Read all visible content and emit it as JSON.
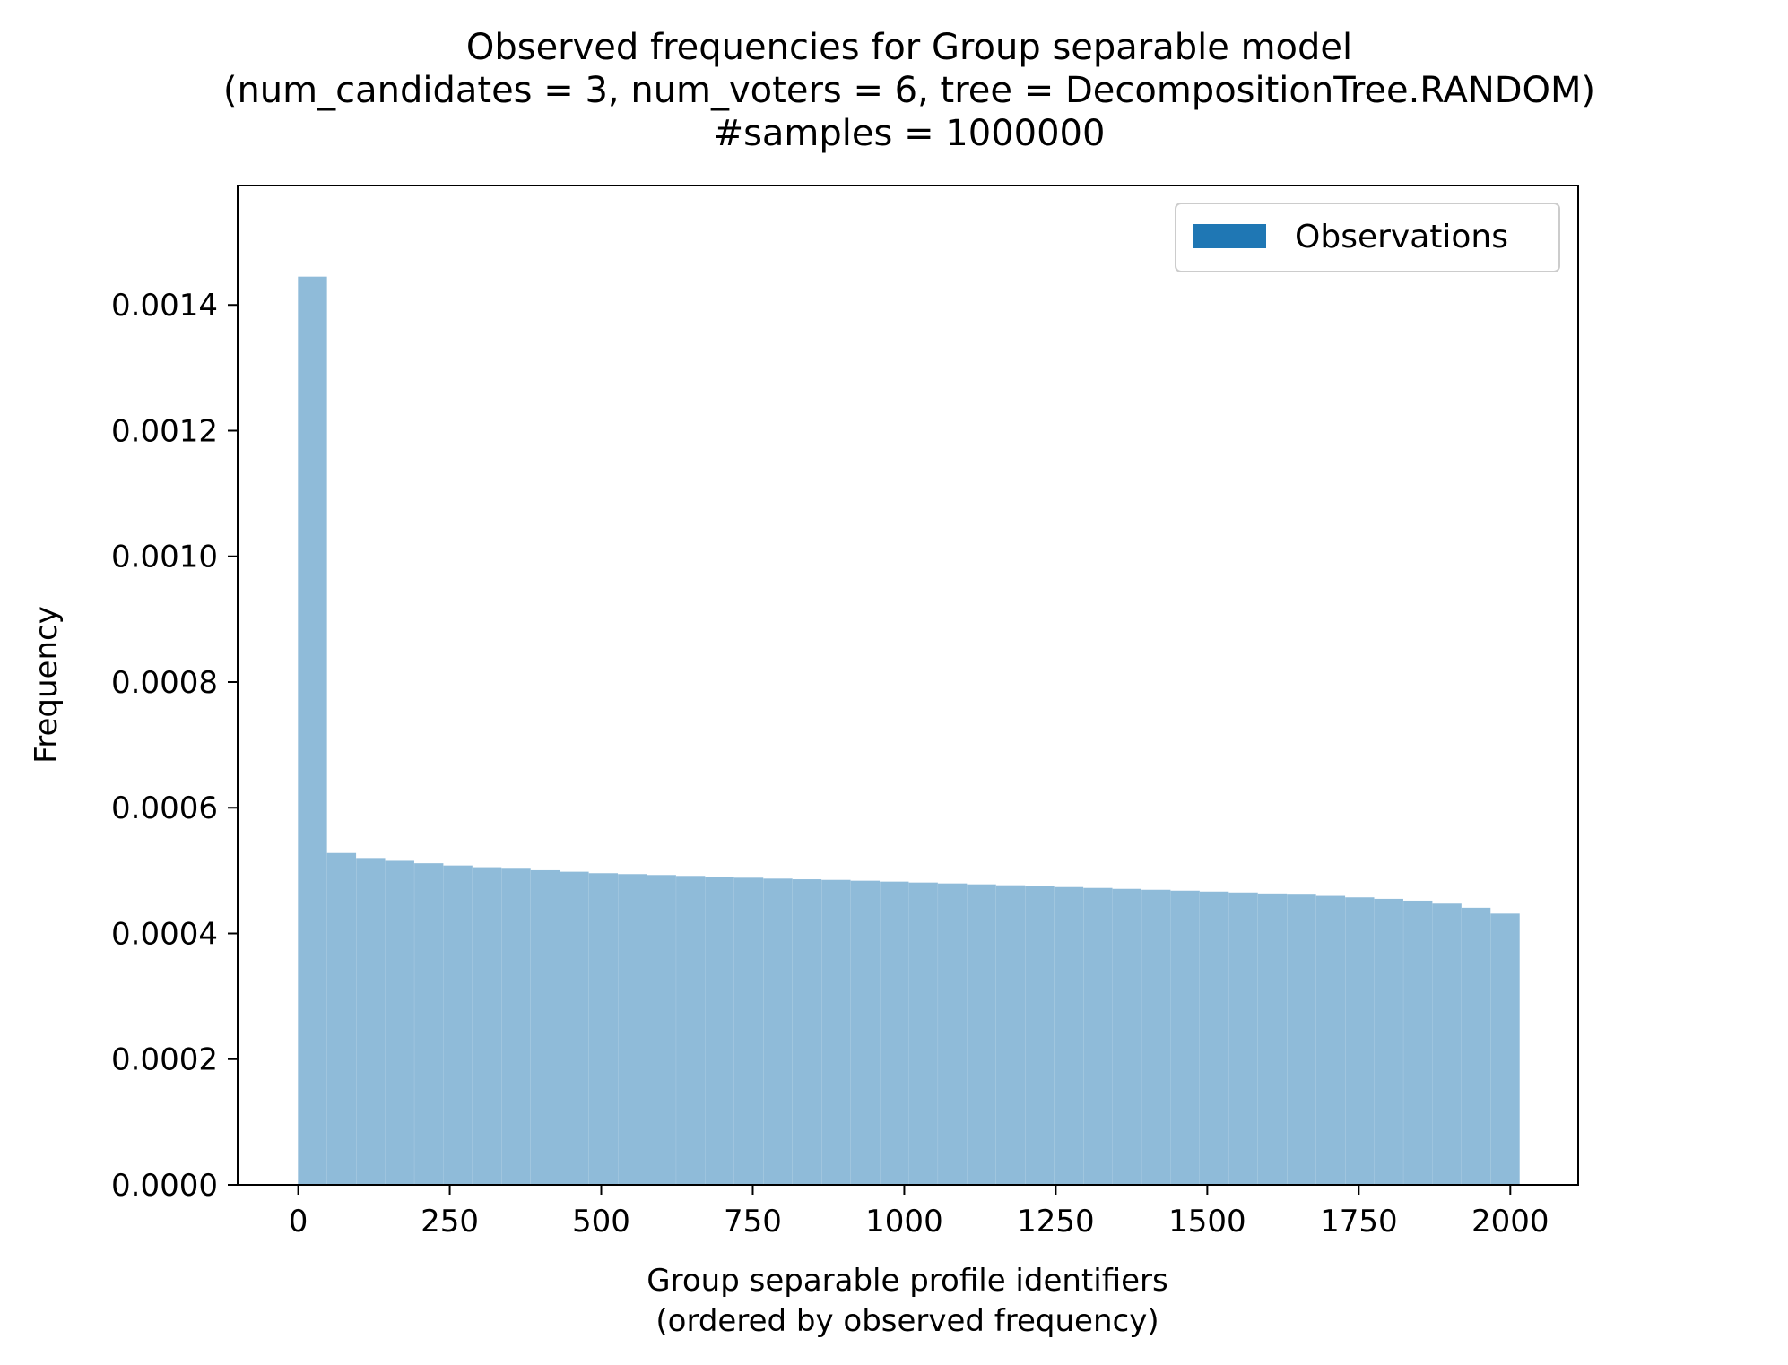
{
  "chart_data": {
    "type": "bar",
    "title_lines": [
      "Observed frequencies for Group separable model",
      "(num_candidates = 3, num_voters = 6, tree = DecompositionTree.RANDOM)",
      "#samples = 1000000"
    ],
    "xlabel_lines": [
      "Group separable profile identifiers",
      "(ordered by observed frequency)"
    ],
    "ylabel": "Frequency",
    "xlim": [
      -100,
      2112
    ],
    "ylim": [
      0,
      0.00159
    ],
    "xticks": [
      0,
      250,
      500,
      750,
      1000,
      1250,
      1500,
      1750,
      2000
    ],
    "xtick_labels": [
      "0",
      "250",
      "500",
      "750",
      "1000",
      "1250",
      "1500",
      "1750",
      "2000"
    ],
    "yticks": [
      0,
      0.0002,
      0.0004,
      0.0006,
      0.0008,
      0.001,
      0.0012,
      0.0014
    ],
    "ytick_labels": [
      "0.0000",
      "0.0002",
      "0.0004",
      "0.0006",
      "0.0008",
      "0.0010",
      "0.0012",
      "0.0014"
    ],
    "legend": {
      "label": "Observations",
      "location": "top-right"
    },
    "series": [
      {
        "name": "Observations",
        "color": "#1f77b4",
        "opacity": 0.5,
        "profile_count": 2016,
        "bar_group_size": 48,
        "frequency_by_rank": [
          [
            0,
            0.001525
          ],
          [
            3,
            0.00151
          ],
          [
            6,
            0.00149
          ],
          [
            10,
            0.00148
          ],
          [
            14,
            0.00147
          ],
          [
            18,
            0.00146
          ],
          [
            22,
            0.00145
          ],
          [
            26,
            0.00144
          ],
          [
            30,
            0.00141
          ],
          [
            33,
            0.00057
          ],
          [
            48,
            0.00054
          ],
          [
            60,
            0.000532
          ],
          [
            75,
            0.000527
          ],
          [
            100,
            0.000524
          ],
          [
            125,
            0.000519
          ],
          [
            175,
            0.000515
          ],
          [
            250,
            0.000509
          ],
          [
            300,
            0.000506
          ],
          [
            400,
            0.000501
          ],
          [
            500,
            0.000496
          ],
          [
            600,
            0.000493
          ],
          [
            700,
            0.00049
          ],
          [
            800,
            0.000487
          ],
          [
            900,
            0.000485
          ],
          [
            1000,
            0.000482
          ],
          [
            1100,
            0.000479
          ],
          [
            1200,
            0.000476
          ],
          [
            1300,
            0.000473
          ],
          [
            1400,
            0.00047
          ],
          [
            1500,
            0.000467
          ],
          [
            1600,
            0.000464
          ],
          [
            1700,
            0.00046
          ],
          [
            1800,
            0.000455
          ],
          [
            1850,
            0.000452
          ],
          [
            1900,
            0.000447
          ],
          [
            1950,
            0.00044
          ],
          [
            1980,
            0.000434
          ],
          [
            2000,
            0.00043
          ],
          [
            2010,
            0.000425
          ],
          [
            2015,
            0.000412
          ]
        ]
      }
    ]
  }
}
